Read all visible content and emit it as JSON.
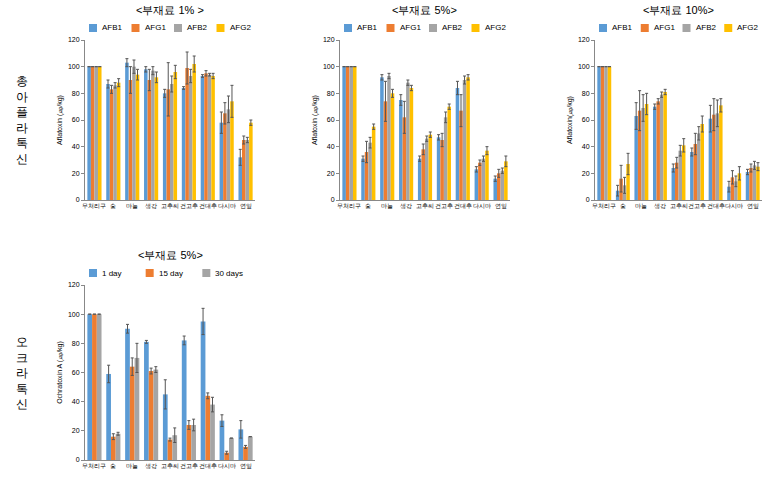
{
  "row_labels": [
    "총아플라톡신",
    "오크라톡신"
  ],
  "chart_data": [
    {
      "type": "bar",
      "title": "<부재료 1% >",
      "ylabel": "Aflatoxin (㎍/kg)",
      "categories": [
        "무처리구",
        "숯",
        "마늘",
        "생강",
        "고추씨",
        "건고추",
        "건대추",
        "다시마",
        "연잎"
      ],
      "series": [
        {
          "name": "AFB1",
          "color": "#5b9bd5",
          "values": [
            100,
            87,
            103,
            98,
            80,
            84,
            93,
            58,
            32
          ],
          "errors": [
            0,
            3,
            3,
            2,
            3,
            1,
            1,
            8,
            6
          ]
        },
        {
          "name": "AFG1",
          "color": "#ed7d31",
          "values": [
            100,
            83,
            90,
            90,
            83,
            99,
            95,
            65,
            45
          ],
          "errors": [
            0,
            3,
            10,
            8,
            20,
            12,
            2,
            8,
            3
          ]
        },
        {
          "name": "AFB2",
          "color": "#a5a5a5",
          "values": [
            100,
            86,
            100,
            97,
            87,
            93,
            94,
            68,
            45
          ],
          "errors": [
            0,
            2,
            5,
            3,
            6,
            5,
            1,
            10,
            2
          ]
        },
        {
          "name": "AFG2",
          "color": "#ffc000",
          "values": [
            100,
            88,
            94,
            92,
            96,
            102,
            93,
            74,
            58
          ],
          "errors": [
            0,
            3,
            4,
            4,
            5,
            6,
            2,
            12,
            2
          ]
        }
      ],
      "ylim": [
        0,
        120
      ],
      "yticks": [
        0,
        20,
        40,
        60,
        80,
        100,
        120
      ],
      "grid": false
    },
    {
      "type": "bar",
      "title": "<부재료 5%>",
      "ylabel": "Aflatoxin (㎍/kg)",
      "categories": [
        "무처리구",
        "숯",
        "마늘",
        "생강",
        "고추씨",
        "건고추",
        "건대추",
        "다시마",
        "연잎"
      ],
      "series": [
        {
          "name": "AFB1",
          "color": "#5b9bd5",
          "values": [
            100,
            31,
            92,
            75,
            31,
            47,
            84,
            23,
            16
          ],
          "errors": [
            0,
            2,
            2,
            4,
            2,
            2,
            5,
            2,
            2
          ]
        },
        {
          "name": "AFG1",
          "color": "#ed7d31",
          "values": [
            100,
            36,
            74,
            62,
            38,
            45,
            67,
            28,
            20
          ],
          "errors": [
            0,
            8,
            15,
            12,
            4,
            5,
            12,
            2,
            3
          ]
        },
        {
          "name": "AFB2",
          "color": "#a5a5a5",
          "values": [
            100,
            43,
            93,
            88,
            46,
            62,
            90,
            31,
            22
          ],
          "errors": [
            0,
            4,
            2,
            2,
            2,
            4,
            3,
            2,
            2
          ]
        },
        {
          "name": "AFG2",
          "color": "#ffc000",
          "values": [
            100,
            55,
            80,
            84,
            49,
            70,
            92,
            37,
            29
          ],
          "errors": [
            0,
            2,
            3,
            2,
            2,
            2,
            2,
            3,
            4
          ]
        }
      ],
      "ylim": [
        0,
        120
      ],
      "yticks": [
        0,
        20,
        40,
        60,
        80,
        100,
        120
      ],
      "grid": false
    },
    {
      "type": "bar",
      "title": "<부재료 10%>",
      "ylabel": "Aflatoxin(㎍/kg)",
      "categories": [
        "무처리구",
        "숯",
        "마늘",
        "생강",
        "고추씨",
        "건고추",
        "건대추",
        "다시마",
        "연잎"
      ],
      "series": [
        {
          "name": "AFB1",
          "color": "#5b9bd5",
          "values": [
            100,
            7,
            63,
            70,
            24,
            36,
            61,
            10,
            21
          ],
          "errors": [
            0,
            4,
            10,
            2,
            3,
            3,
            10,
            4,
            2
          ]
        },
        {
          "name": "AFG1",
          "color": "#ed7d31",
          "values": [
            100,
            16,
            67,
            74,
            28,
            42,
            64,
            17,
            24
          ],
          "errors": [
            0,
            10,
            15,
            2,
            4,
            8,
            12,
            5,
            3
          ]
        },
        {
          "name": "AFB2",
          "color": "#a5a5a5",
          "values": [
            100,
            11,
            69,
            79,
            37,
            50,
            65,
            14,
            26
          ],
          "errors": [
            0,
            6,
            10,
            2,
            4,
            5,
            10,
            4,
            3
          ]
        },
        {
          "name": "AFG2",
          "color": "#ffc000",
          "values": [
            100,
            27,
            72,
            81,
            41,
            57,
            71,
            20,
            25
          ],
          "errors": [
            0,
            8,
            8,
            2,
            5,
            6,
            5,
            5,
            3
          ]
        }
      ],
      "ylim": [
        0,
        120
      ],
      "yticks": [
        0,
        20,
        40,
        60,
        80,
        100,
        120
      ],
      "grid": false
    },
    {
      "type": "bar",
      "title": "<부재료 5%>",
      "ylabel": "Ochratoxin A (㎍/kg)",
      "categories": [
        "무처리구",
        "숯",
        "마늘",
        "생강",
        "고추씨",
        "건고추",
        "건대추",
        "다시마",
        "연잎"
      ],
      "series": [
        {
          "name": "1 day",
          "color": "#5b9bd5",
          "values": [
            100,
            59,
            90,
            81,
            45,
            82,
            95,
            27,
            21
          ],
          "errors": [
            0,
            6,
            3,
            1,
            10,
            3,
            9,
            4,
            6
          ]
        },
        {
          "name": "15 day",
          "color": "#ed7d31",
          "values": [
            100,
            16,
            64,
            61,
            14,
            24,
            44,
            5,
            9
          ],
          "errors": [
            0,
            2,
            6,
            2,
            1,
            3,
            2,
            1,
            1
          ]
        },
        {
          "name": "30 days",
          "color": "#a5a5a5",
          "values": [
            100,
            18,
            70,
            62,
            17,
            24,
            38,
            15,
            16
          ],
          "errors": [
            0,
            1,
            10,
            2,
            5,
            4,
            5,
            0,
            0
          ]
        }
      ],
      "ylim": [
        0,
        120
      ],
      "yticks": [
        0,
        20,
        40,
        60,
        80,
        100,
        120
      ],
      "grid": false
    }
  ]
}
